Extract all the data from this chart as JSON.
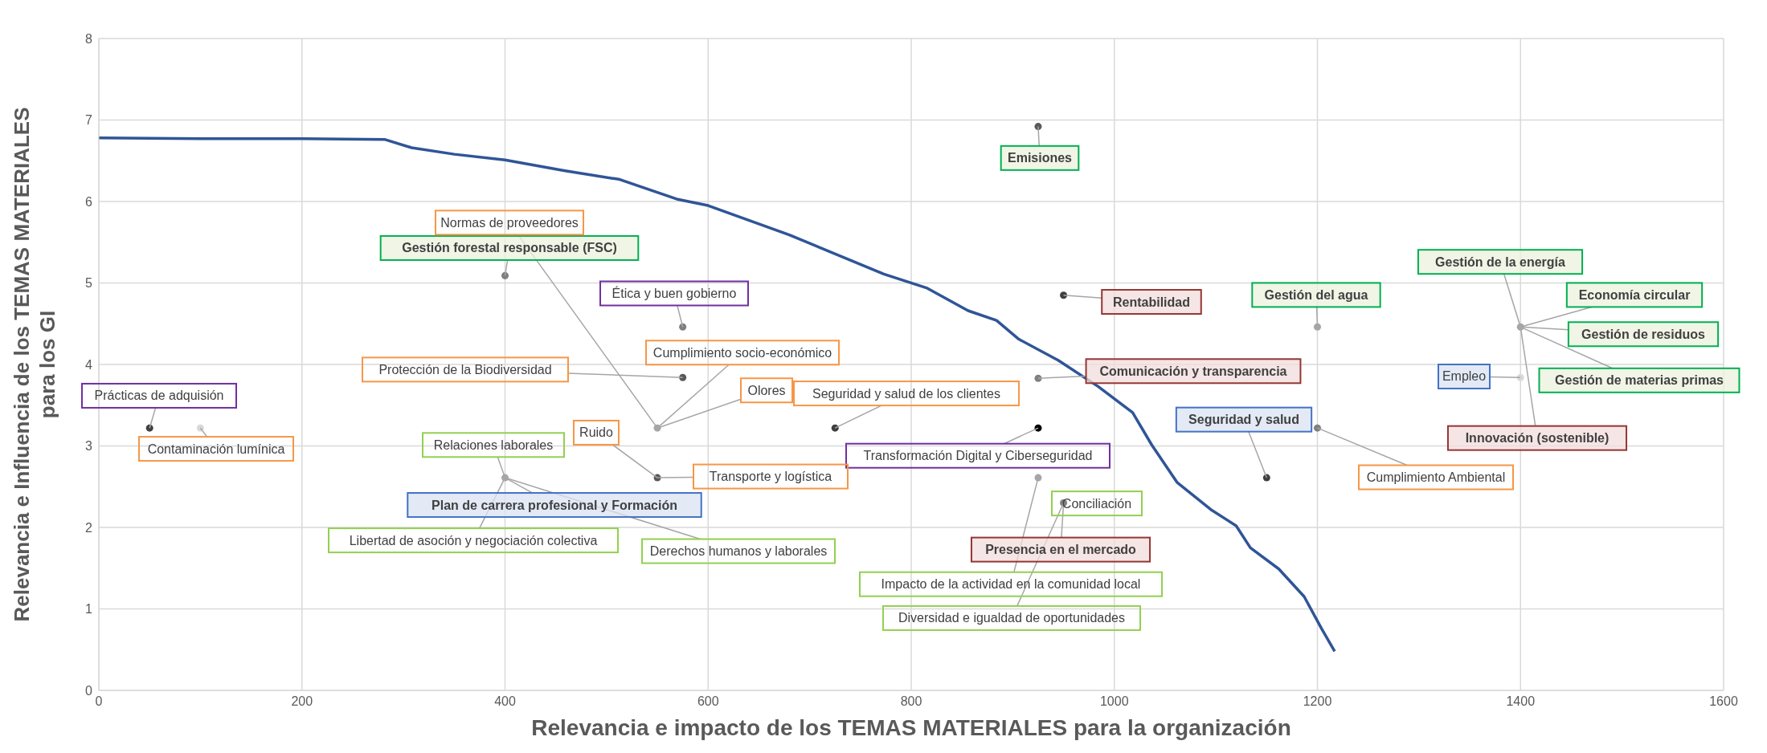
{
  "chart_data": {
    "type": "scatter",
    "xlabel": "Relevancia e impacto de los TEMAS MATERIALES para la organización",
    "ylabel": "Relevancia e Influencia de los TEMAS MATERIALES\npara los GI",
    "xlim": [
      0,
      1600
    ],
    "xticks": [
      0,
      200,
      400,
      600,
      800,
      1000,
      1200,
      1400,
      1600
    ],
    "ylim": [
      0,
      8
    ],
    "yticks": [
      0,
      1,
      2,
      3,
      4,
      5,
      6,
      7,
      8
    ],
    "grid": true,
    "series": [
      {
        "type": "line",
        "color": "#2f5597",
        "marker": "none",
        "x": [
          0,
          100,
          200,
          282,
          308,
          350,
          400,
          458,
          513,
          569,
          600,
          680,
          773,
          815,
          856,
          884,
          906,
          945,
          984,
          1018,
          1037,
          1062,
          1095,
          1120,
          1134,
          1162,
          1187,
          1204,
          1217
        ],
        "values": [
          6.78,
          6.77,
          6.77,
          6.76,
          6.66,
          6.58,
          6.51,
          6.38,
          6.27,
          6.03,
          5.95,
          5.59,
          5.11,
          4.94,
          4.66,
          4.54,
          4.31,
          4.05,
          3.73,
          3.41,
          3.01,
          2.55,
          2.22,
          2.02,
          1.75,
          1.49,
          1.15,
          0.76,
          0.48
        ]
      },
      {
        "marker": "circle",
        "x": [
          925,
          400,
          575,
          950,
          1200,
          1400,
          1400,
          925,
          575,
          550,
          725,
          50,
          100,
          550,
          400,
          925,
          1150,
          1200,
          950,
          925
        ],
        "values": [
          6.92,
          5.09,
          4.46,
          4.85,
          4.46,
          4.46,
          3.84,
          3.83,
          3.84,
          3.22,
          3.22,
          3.22,
          3.22,
          2.61,
          2.61,
          3.22,
          2.61,
          3.22,
          2.3,
          2.61
        ],
        "colors": [
          "#595959",
          "#7f7f7f",
          "#7f7f7f",
          "#404040",
          "#a6a6a6",
          "#a6a6a6",
          "#d9d9d9",
          "#808080",
          "#595959",
          "#a6a6a6",
          "#404040",
          "#404040",
          "#d9d9d9",
          "#595959",
          "#a6a6a6",
          "#000000",
          "#404040",
          "#808080",
          "#808080",
          "#a6a6a6"
        ]
      }
    ],
    "annotations": [
      {
        "text": "Emisiones",
        "x": 925,
        "y": 6.92
      },
      {
        "text": "Gestión forestal responsable (FSC)",
        "x": 400,
        "y": 5.09
      },
      {
        "text": "Normas de proveedores",
        "x": 550,
        "y": 3.22
      },
      {
        "text": "Ética y buen gobierno",
        "x": 575,
        "y": 4.46
      },
      {
        "text": "Rentabilidad",
        "x": 950,
        "y": 4.85
      },
      {
        "text": "Gestión del agua",
        "x": 1200,
        "y": 4.46
      },
      {
        "text": "Gestión de la energía",
        "x": 1400,
        "y": 4.46
      },
      {
        "text": "Economía circular",
        "x": 1400,
        "y": 4.46
      },
      {
        "text": "Gestión de residuos",
        "x": 1400,
        "y": 4.46
      },
      {
        "text": "Gestión de materias primas",
        "x": 1400,
        "y": 4.46
      },
      {
        "text": "Empleo",
        "x": 1400,
        "y": 3.84
      },
      {
        "text": "Innovación (sostenible)",
        "x": 1400,
        "y": 4.46
      },
      {
        "text": "Comunicación y transparencia",
        "x": 925,
        "y": 3.83
      },
      {
        "text": "Cumplimiento socio-económico",
        "x": 550,
        "y": 3.22
      },
      {
        "text": "Protección de la Biodiversidad",
        "x": 575,
        "y": 3.84
      },
      {
        "text": "Olores",
        "x": 550,
        "y": 3.22
      },
      {
        "text": "Seguridad y salud de los clientes",
        "x": 725,
        "y": 3.22
      },
      {
        "text": "Prácticas de adquisión",
        "x": 50,
        "y": 3.22
      },
      {
        "text": "Contaminación lumínica",
        "x": 100,
        "y": 3.22
      },
      {
        "text": "Ruido",
        "x": 550,
        "y": 2.61
      },
      {
        "text": "Relaciones laborales",
        "x": 400,
        "y": 2.61
      },
      {
        "text": "Transformación Digital y Ciberseguridad",
        "x": 925,
        "y": 3.22
      },
      {
        "text": "Seguridad y salud",
        "x": 1150,
        "y": 2.61
      },
      {
        "text": "Cumplimiento Ambiental",
        "x": 1200,
        "y": 3.22
      },
      {
        "text": "Transporte y logística",
        "x": 550,
        "y": 2.61
      },
      {
        "text": "Plan de carrera profesional y Formación",
        "x": 400,
        "y": 2.61
      },
      {
        "text": "Conciliación",
        "x": 950,
        "y": 2.3
      },
      {
        "text": "Libertad de asoción y negociación colectiva",
        "x": 400,
        "y": 2.61
      },
      {
        "text": "Derechos humanos y laborales",
        "x": 400,
        "y": 2.61
      },
      {
        "text": "Presencia en el mercado",
        "x": 950,
        "y": 2.3
      },
      {
        "text": "Impacto de la actividad en la comunidad local",
        "x": 925,
        "y": 2.61
      },
      {
        "text": "Diversidad e igualdad de oportunidades",
        "x": 950,
        "y": 2.3
      }
    ]
  }
}
